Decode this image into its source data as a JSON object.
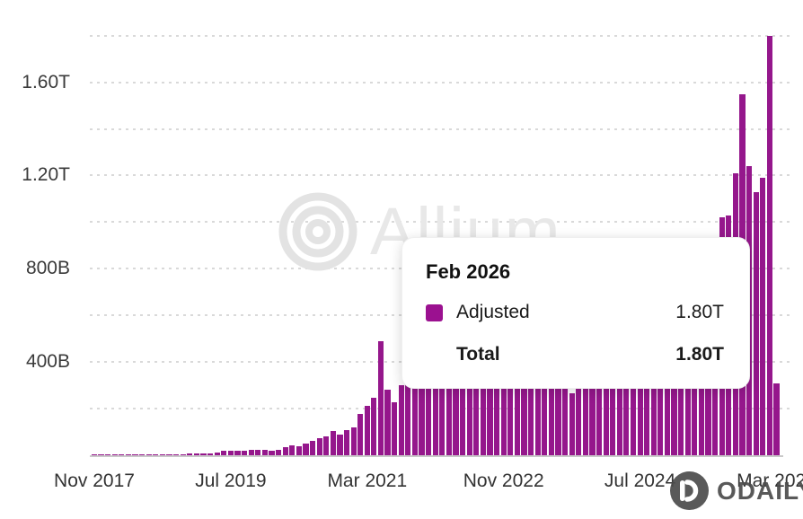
{
  "colors": {
    "bar": "#95178c",
    "swatch": "#9b1190",
    "grid": "#d9d9d9",
    "axis_text": "#3a3a3a",
    "watermark": "#e8e8e8",
    "branding": "#4b4b4b"
  },
  "watermark": {
    "text": "Allium",
    "logo_icon": "concentric-rings-icon"
  },
  "branding": {
    "text": "ODAILY",
    "logo_icon": "odaily-circle-icon"
  },
  "tooltip": {
    "title": "Feb 2026",
    "rows": [
      {
        "label": "Adjusted",
        "value": "1.80T",
        "swatch": true,
        "bold": false
      },
      {
        "label": "Total",
        "value": "1.80T",
        "swatch": false,
        "bold": true
      }
    ]
  },
  "chart_data": {
    "type": "bar",
    "title": "",
    "xlabel": "",
    "ylabel": "",
    "unit": "USD (B = billions, T = trillions)",
    "legend_position": "tooltip-only",
    "grid": "dotted-horizontal",
    "ylim": [
      0,
      1900
    ],
    "grid_step": 200,
    "y_ticks": [
      {
        "value": 400,
        "label": "400B"
      },
      {
        "value": 800,
        "label": "800B"
      },
      {
        "value": 1200,
        "label": "1.20T"
      },
      {
        "value": 1600,
        "label": "1.60T"
      }
    ],
    "x_tick_indices": [
      0,
      20,
      40,
      60,
      80,
      100
    ],
    "x_tick_labels": [
      "Nov 2017",
      "Jul 2019",
      "Mar 2021",
      "Nov 2022",
      "Jul 2024",
      "Mar 2026"
    ],
    "x": [
      "Nov 2017",
      "Dec 2017",
      "Jan 2018",
      "Feb 2018",
      "Mar 2018",
      "Apr 2018",
      "May 2018",
      "Jun 2018",
      "Jul 2018",
      "Aug 2018",
      "Sep 2018",
      "Oct 2018",
      "Nov 2018",
      "Dec 2018",
      "Jan 2019",
      "Feb 2019",
      "Mar 2019",
      "Apr 2019",
      "May 2019",
      "Jun 2019",
      "Jul 2019",
      "Aug 2019",
      "Sep 2019",
      "Oct 2019",
      "Nov 2019",
      "Dec 2019",
      "Jan 2020",
      "Feb 2020",
      "Mar 2020",
      "Apr 2020",
      "May 2020",
      "Jun 2020",
      "Jul 2020",
      "Aug 2020",
      "Sep 2020",
      "Oct 2020",
      "Nov 2020",
      "Dec 2020",
      "Jan 2021",
      "Feb 2021",
      "Mar 2021",
      "Apr 2021",
      "May 2021",
      "Jun 2021",
      "Jul 2021",
      "Aug 2021",
      "Sep 2021",
      "Oct 2021",
      "Nov 2021",
      "Dec 2021",
      "Jan 2022",
      "Feb 2022",
      "Mar 2022",
      "Apr 2022",
      "May 2022",
      "Jun 2022",
      "Jul 2022",
      "Aug 2022",
      "Sep 2022",
      "Oct 2022",
      "Nov 2022",
      "Dec 2022",
      "Jan 2023",
      "Feb 2023",
      "Mar 2023",
      "Apr 2023",
      "May 2023",
      "Jun 2023",
      "Jul 2023",
      "Aug 2023",
      "Sep 2023",
      "Oct 2023",
      "Nov 2023",
      "Dec 2023",
      "Jan 2024",
      "Feb 2024",
      "Mar 2024",
      "Apr 2024",
      "May 2024",
      "Jun 2024",
      "Jul 2024",
      "Aug 2024",
      "Sep 2024",
      "Oct 2024",
      "Nov 2024",
      "Dec 2024",
      "Jan 2025",
      "Feb 2025",
      "Mar 2025",
      "Apr 2025",
      "May 2025",
      "Jun 2025",
      "Jul 2025",
      "Aug 2025",
      "Sep 2025",
      "Oct 2025",
      "Nov 2025",
      "Dec 2025",
      "Jan 2026",
      "Feb 2026",
      "Mar 2026"
    ],
    "series": [
      {
        "name": "Adjusted",
        "values_unit_B": [
          2,
          2,
          3,
          3,
          3,
          3,
          3,
          4,
          4,
          4,
          4,
          4,
          5,
          5,
          6,
          6,
          8,
          9,
          10,
          20,
          19,
          19,
          21,
          25,
          22,
          22,
          21,
          22,
          36,
          43,
          40,
          49,
          62,
          72,
          82,
          105,
          88,
          106,
          120,
          177,
          212,
          246,
          490,
          280,
          226,
          300,
          330,
          360,
          420,
          400,
          430,
          300,
          440,
          460,
          550,
          480,
          400,
          390,
          420,
          430,
          520,
          450,
          420,
          440,
          560,
          480,
          450,
          430,
          420,
          410,
          265,
          440,
          480,
          500,
          520,
          560,
          620,
          580,
          560,
          540,
          560,
          550,
          570,
          620,
          700,
          760,
          720,
          680,
          700,
          720,
          780,
          860,
          1020,
          1030,
          1210,
          1550,
          1240,
          1130,
          1190,
          1800,
          310
        ]
      }
    ],
    "highlighted_bar": {
      "x": "Feb 2026",
      "adjusted": "1.80T",
      "total": "1.80T"
    }
  }
}
